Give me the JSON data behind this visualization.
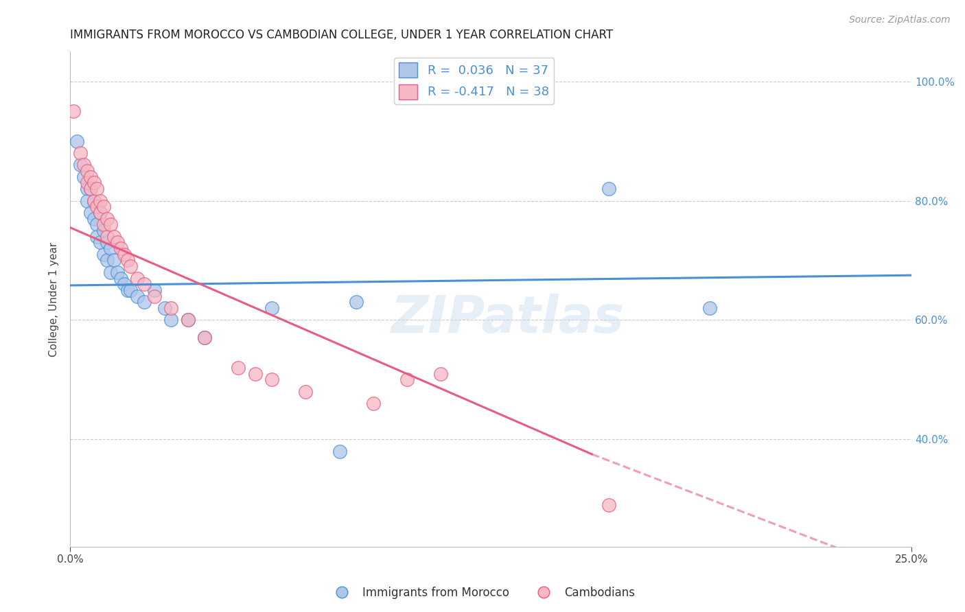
{
  "title": "IMMIGRANTS FROM MOROCCO VS CAMBODIAN COLLEGE, UNDER 1 YEAR CORRELATION CHART",
  "source": "Source: ZipAtlas.com",
  "ylabel": "College, Under 1 year",
  "ylabel_ticks": [
    "100.0%",
    "80.0%",
    "60.0%",
    "40.0%"
  ],
  "ylabel_tick_vals": [
    1.0,
    0.8,
    0.6,
    0.4
  ],
  "xmin": 0.0,
  "xmax": 0.25,
  "ymin": 0.22,
  "ymax": 1.05,
  "legend_blue_label": "R =  0.036   N = 37",
  "legend_pink_label": "R = -0.417   N = 38",
  "watermark": "ZIPatlas",
  "blue_color": "#aec6e8",
  "pink_color": "#f5b8c4",
  "blue_line_color": "#4a90d9",
  "pink_line_color": "#e85c80",
  "blue_trend": [
    0.0,
    0.25,
    0.658,
    0.675
  ],
  "pink_trend_solid": [
    0.0,
    0.155,
    0.755,
    0.375
  ],
  "pink_trend_dashed": [
    0.155,
    0.25,
    0.375,
    0.17
  ],
  "blue_series": [
    [
      0.002,
      0.9
    ],
    [
      0.003,
      0.86
    ],
    [
      0.004,
      0.84
    ],
    [
      0.005,
      0.82
    ],
    [
      0.005,
      0.8
    ],
    [
      0.006,
      0.82
    ],
    [
      0.006,
      0.78
    ],
    [
      0.007,
      0.8
    ],
    [
      0.007,
      0.77
    ],
    [
      0.008,
      0.76
    ],
    [
      0.008,
      0.74
    ],
    [
      0.009,
      0.78
    ],
    [
      0.009,
      0.73
    ],
    [
      0.01,
      0.75
    ],
    [
      0.01,
      0.71
    ],
    [
      0.011,
      0.73
    ],
    [
      0.011,
      0.7
    ],
    [
      0.012,
      0.72
    ],
    [
      0.012,
      0.68
    ],
    [
      0.013,
      0.7
    ],
    [
      0.014,
      0.68
    ],
    [
      0.015,
      0.67
    ],
    [
      0.016,
      0.66
    ],
    [
      0.017,
      0.65
    ],
    [
      0.018,
      0.65
    ],
    [
      0.02,
      0.64
    ],
    [
      0.022,
      0.63
    ],
    [
      0.025,
      0.65
    ],
    [
      0.028,
      0.62
    ],
    [
      0.03,
      0.6
    ],
    [
      0.035,
      0.6
    ],
    [
      0.04,
      0.57
    ],
    [
      0.06,
      0.62
    ],
    [
      0.08,
      0.38
    ],
    [
      0.085,
      0.63
    ],
    [
      0.16,
      0.82
    ],
    [
      0.19,
      0.62
    ]
  ],
  "pink_series": [
    [
      0.001,
      0.95
    ],
    [
      0.003,
      0.88
    ],
    [
      0.004,
      0.86
    ],
    [
      0.005,
      0.85
    ],
    [
      0.005,
      0.83
    ],
    [
      0.006,
      0.84
    ],
    [
      0.006,
      0.82
    ],
    [
      0.007,
      0.83
    ],
    [
      0.007,
      0.8
    ],
    [
      0.008,
      0.82
    ],
    [
      0.008,
      0.79
    ],
    [
      0.009,
      0.8
    ],
    [
      0.009,
      0.78
    ],
    [
      0.01,
      0.79
    ],
    [
      0.01,
      0.76
    ],
    [
      0.011,
      0.77
    ],
    [
      0.011,
      0.74
    ],
    [
      0.012,
      0.76
    ],
    [
      0.013,
      0.74
    ],
    [
      0.014,
      0.73
    ],
    [
      0.015,
      0.72
    ],
    [
      0.016,
      0.71
    ],
    [
      0.017,
      0.7
    ],
    [
      0.018,
      0.69
    ],
    [
      0.02,
      0.67
    ],
    [
      0.022,
      0.66
    ],
    [
      0.025,
      0.64
    ],
    [
      0.03,
      0.62
    ],
    [
      0.035,
      0.6
    ],
    [
      0.04,
      0.57
    ],
    [
      0.05,
      0.52
    ],
    [
      0.055,
      0.51
    ],
    [
      0.06,
      0.5
    ],
    [
      0.07,
      0.48
    ],
    [
      0.09,
      0.46
    ],
    [
      0.1,
      0.5
    ],
    [
      0.11,
      0.51
    ],
    [
      0.16,
      0.29
    ]
  ]
}
